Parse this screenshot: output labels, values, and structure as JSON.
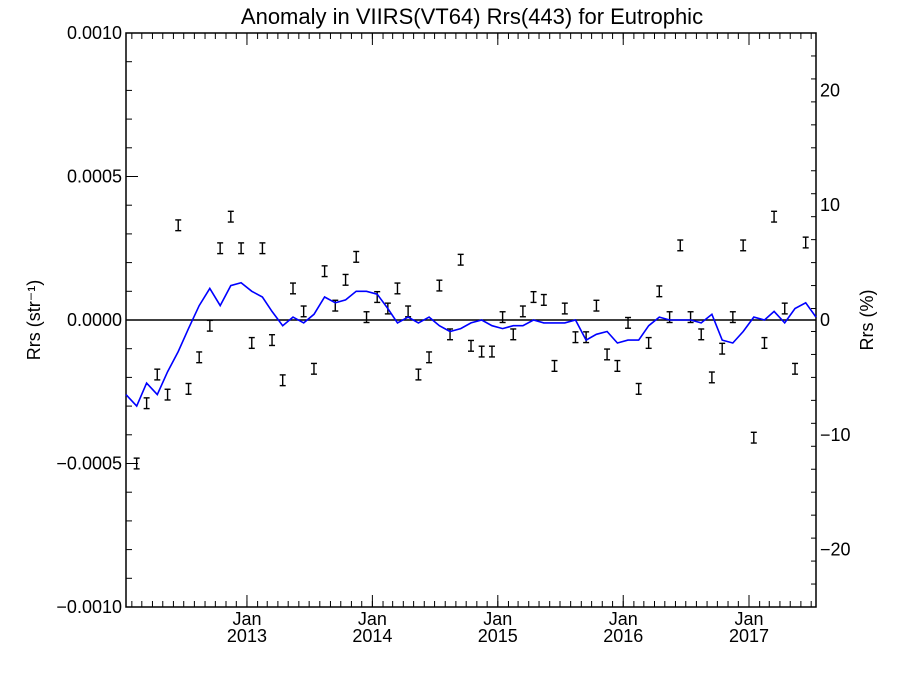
{
  "chart_data": {
    "type": "line",
    "title": "Anomaly in VIIRS(VT64) Rrs(443) for Eutrophic",
    "ylabel": "Rrs (str⁻¹)",
    "ylabel_right": "Rrs (%)",
    "xlabel": "",
    "xlim": [
      "2012-01-15",
      "2017-07-15"
    ],
    "ylim": [
      -0.001,
      0.001
    ],
    "ylim_right": [
      -25,
      25
    ],
    "grid": false,
    "legend": "none",
    "x_ticks": [
      {
        "date": "2013-01-01",
        "month": "Jan",
        "year": "2013"
      },
      {
        "date": "2014-01-01",
        "month": "Jan",
        "year": "2014"
      },
      {
        "date": "2015-01-01",
        "month": "Jan",
        "year": "2015"
      },
      {
        "date": "2016-01-01",
        "month": "Jan",
        "year": "2016"
      },
      {
        "date": "2017-01-01",
        "month": "Jan",
        "year": "2017"
      }
    ],
    "y_ticks": [
      {
        "value": 0.001,
        "label": "0.0010"
      },
      {
        "value": 0.0005,
        "label": "0.0005"
      },
      {
        "value": 0,
        "label": "0.0000"
      },
      {
        "value": -0.0005,
        "label": "−0.0005"
      },
      {
        "value": -0.001,
        "label": "−0.0010"
      }
    ],
    "y_ticks_right": [
      {
        "value": 20,
        "label": "20"
      },
      {
        "value": 10,
        "label": "10"
      },
      {
        "value": 0,
        "label": "0"
      },
      {
        "value": -10,
        "label": "−10"
      },
      {
        "value": -20,
        "label": "−20"
      }
    ],
    "zero_line": true,
    "series": [
      {
        "type": "errorbar",
        "color": "#000000",
        "axis": "left",
        "x": [
          "2012-02-15",
          "2012-03-15",
          "2012-04-15",
          "2012-05-15",
          "2012-06-15",
          "2012-07-15",
          "2012-08-15",
          "2012-09-15",
          "2012-10-15",
          "2012-11-15",
          "2012-12-15",
          "2013-01-15",
          "2013-02-15",
          "2013-03-15",
          "2013-04-15",
          "2013-05-15",
          "2013-06-15",
          "2013-07-15",
          "2013-08-15",
          "2013-09-15",
          "2013-10-15",
          "2013-11-15",
          "2013-12-15",
          "2014-01-15",
          "2014-02-15",
          "2014-03-15",
          "2014-04-15",
          "2014-05-15",
          "2014-06-15",
          "2014-07-15",
          "2014-08-15",
          "2014-09-15",
          "2014-10-15",
          "2014-11-15",
          "2014-12-15",
          "2015-01-15",
          "2015-02-15",
          "2015-03-15",
          "2015-04-15",
          "2015-05-15",
          "2015-06-15",
          "2015-07-15",
          "2015-08-15",
          "2015-09-15",
          "2015-10-15",
          "2015-11-15",
          "2015-12-15",
          "2016-01-15",
          "2016-02-15",
          "2016-03-15",
          "2016-04-15",
          "2016-05-15",
          "2016-06-15",
          "2016-07-15",
          "2016-08-15",
          "2016-09-15",
          "2016-10-15",
          "2016-11-15",
          "2016-12-15",
          "2017-01-15",
          "2017-02-15",
          "2017-03-15",
          "2017-04-15",
          "2017-05-15",
          "2017-06-15"
        ],
        "values": [
          -0.0005,
          -0.00029,
          -0.00019,
          -0.00026,
          0.00033,
          -0.00024,
          -0.00013,
          -2e-05,
          0.00025,
          0.00036,
          0.00025,
          -8e-05,
          0.00025,
          -7e-05,
          -0.00021,
          0.00011,
          3e-05,
          -0.00017,
          0.00017,
          5e-05,
          0.00014,
          0.00022,
          1e-05,
          8e-05,
          4e-05,
          0.00011,
          3e-05,
          -0.00019,
          -0.00013,
          0.00012,
          -5e-05,
          0.00021,
          -9e-05,
          -0.00011,
          -0.00011,
          1e-05,
          -5e-05,
          3e-05,
          8e-05,
          7e-05,
          -0.00016,
          4e-05,
          -6e-05,
          -6e-05,
          5e-05,
          -0.00012,
          -0.00016,
          -1e-05,
          -0.00024,
          -8e-05,
          0.0001,
          1e-05,
          0.00026,
          1e-05,
          -5e-05,
          -0.0002,
          -0.0001,
          1e-05,
          0.00026,
          -0.00041,
          -8e-05,
          0.00036,
          4e-05,
          -0.00017,
          0.00027
        ],
        "error": [
          1e-05,
          1e-05,
          1e-05,
          1e-05,
          1e-05,
          1e-05,
          1e-05,
          1e-05,
          1e-05,
          1e-05,
          1e-05,
          1e-05,
          1e-05,
          1e-05,
          1e-05,
          1e-05,
          1e-05,
          1e-05,
          1e-05,
          1e-05,
          1e-05,
          1e-05,
          1e-05,
          1e-05,
          1e-05,
          1e-05,
          1e-05,
          1e-05,
          1e-05,
          1e-05,
          1e-05,
          1e-05,
          1e-05,
          1e-05,
          1e-05,
          1e-05,
          1e-05,
          1e-05,
          1e-05,
          1e-05,
          1e-05,
          1e-05,
          1e-05,
          1e-05,
          1e-05,
          1e-05,
          1e-05,
          1e-05,
          1e-05,
          1e-05,
          1e-05,
          1e-05,
          1e-05,
          1e-05,
          1e-05,
          1e-05,
          1e-05,
          1e-05,
          1e-05,
          1e-05,
          1e-05,
          1e-05,
          1e-05,
          1e-05,
          1e-05
        ]
      },
      {
        "type": "line",
        "color": "#0000ff",
        "axis": "left",
        "x": [
          "2012-01-15",
          "2012-02-15",
          "2012-03-15",
          "2012-04-15",
          "2012-05-15",
          "2012-06-15",
          "2012-07-15",
          "2012-08-15",
          "2012-09-15",
          "2012-10-15",
          "2012-11-15",
          "2012-12-15",
          "2013-01-15",
          "2013-02-15",
          "2013-03-15",
          "2013-04-15",
          "2013-05-15",
          "2013-06-15",
          "2013-07-15",
          "2013-08-15",
          "2013-09-15",
          "2013-10-15",
          "2013-11-15",
          "2013-12-15",
          "2014-01-15",
          "2014-02-15",
          "2014-03-15",
          "2014-04-15",
          "2014-05-15",
          "2014-06-15",
          "2014-07-15",
          "2014-08-15",
          "2014-09-15",
          "2014-10-15",
          "2014-11-15",
          "2014-12-15",
          "2015-01-15",
          "2015-02-15",
          "2015-03-15",
          "2015-04-15",
          "2015-05-15",
          "2015-06-15",
          "2015-07-15",
          "2015-08-15",
          "2015-09-15",
          "2015-10-15",
          "2015-11-15",
          "2015-12-15",
          "2016-01-15",
          "2016-02-15",
          "2016-03-15",
          "2016-04-15",
          "2016-05-15",
          "2016-06-15",
          "2016-07-15",
          "2016-08-15",
          "2016-09-15",
          "2016-10-15",
          "2016-11-15",
          "2016-12-15",
          "2017-01-15",
          "2017-02-15",
          "2017-03-15",
          "2017-04-15",
          "2017-05-15",
          "2017-06-15",
          "2017-07-15"
        ],
        "values": [
          -0.00026,
          -0.0003,
          -0.00022,
          -0.00026,
          -0.00018,
          -0.00011,
          -3e-05,
          5e-05,
          0.00011,
          5e-05,
          0.00012,
          0.00013,
          0.0001,
          8e-05,
          3e-05,
          -2e-05,
          1e-05,
          -1e-05,
          2e-05,
          8e-05,
          6e-05,
          7e-05,
          0.0001,
          0.0001,
          9e-05,
          4e-05,
          -1e-05,
          1e-05,
          -1e-05,
          1e-05,
          -2e-05,
          -4e-05,
          -3e-05,
          -1e-05,
          0.0,
          -2e-05,
          -3e-05,
          -2e-05,
          -2e-05,
          0.0,
          -1e-05,
          -1e-05,
          -1e-05,
          0.0,
          -7e-05,
          -5e-05,
          -4e-05,
          -8e-05,
          -7e-05,
          -7e-05,
          -2e-05,
          1e-05,
          0.0,
          0.0,
          0.0,
          -1e-05,
          2e-05,
          -7e-05,
          -8e-05,
          -4e-05,
          1e-05,
          0.0,
          3e-05,
          -1e-05,
          4e-05,
          6e-05,
          1e-05
        ]
      }
    ]
  }
}
